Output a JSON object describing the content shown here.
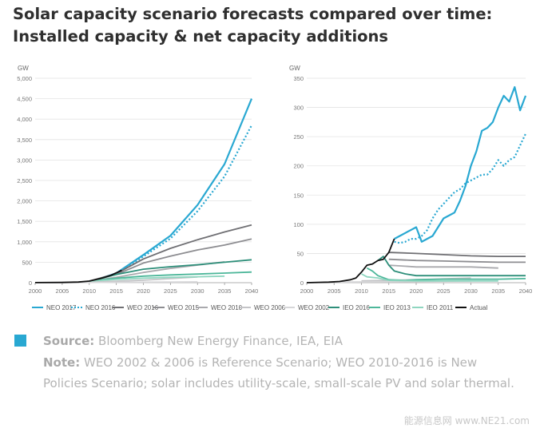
{
  "title": "Solar capacity scenario forecasts compared over time: Installed capacity & net capacity additions",
  "source_label": "Source:",
  "source_text": "Bloomberg New Energy Finance, IEA, EIA",
  "note_label": "Note:",
  "note_text": "WEO 2002 & 2006 is Reference Scenario; WEO 2010-2016 is New Policies Scenario; solar includes utility-scale, small-scale PV and solar thermal.",
  "watermark": "能源信息网 www.NE21.com",
  "legend": [
    {
      "name": "NEO 2017",
      "color": "#29a8d2",
      "dash": "solid"
    },
    {
      "name": "NEO 2016",
      "color": "#29a8d2",
      "dash": "dotted"
    },
    {
      "name": "WEO 2016",
      "color": "#6f6f73",
      "dash": "solid"
    },
    {
      "name": "WEO 2015",
      "color": "#8d8d91",
      "dash": "solid"
    },
    {
      "name": "WEO 2010",
      "color": "#a9a9ad",
      "dash": "solid"
    },
    {
      "name": "WEO 2006",
      "color": "#c4c4c7",
      "dash": "solid"
    },
    {
      "name": "WEO 2002",
      "color": "#d6d6d8",
      "dash": "solid"
    },
    {
      "name": "IEO 2016",
      "color": "#2e8f7a",
      "dash": "solid"
    },
    {
      "name": "IEO 2013",
      "color": "#4db79a",
      "dash": "solid"
    },
    {
      "name": "IEO 2011",
      "color": "#8fd6c0",
      "dash": "solid"
    },
    {
      "name": "Actual",
      "color": "#111111",
      "dash": "solid"
    }
  ],
  "chart_data": [
    {
      "type": "line",
      "ylabel": "GW",
      "xlim": [
        2000,
        2040
      ],
      "ylim": [
        0,
        5000
      ],
      "xticks": [
        2000,
        2005,
        2010,
        2015,
        2020,
        2025,
        2030,
        2035,
        2040
      ],
      "yticks": [
        0,
        500,
        1000,
        1500,
        2000,
        2500,
        3000,
        3500,
        4000,
        4500,
        5000
      ],
      "grid": "horizontal",
      "series": [
        {
          "name": "NEO 2017",
          "x": [
            2012,
            2015,
            2020,
            2025,
            2030,
            2035,
            2040
          ],
          "y": [
            100,
            230,
            680,
            1150,
            1900,
            2900,
            4500
          ]
        },
        {
          "name": "NEO 2016",
          "x": [
            2012,
            2015,
            2020,
            2025,
            2030,
            2035,
            2040
          ],
          "y": [
            100,
            220,
            640,
            1080,
            1750,
            2600,
            3850
          ]
        },
        {
          "name": "WEO 2016",
          "x": [
            2010,
            2015,
            2020,
            2025,
            2030,
            2035,
            2040
          ],
          "y": [
            40,
            220,
            580,
            840,
            1050,
            1240,
            1410
          ]
        },
        {
          "name": "WEO 2015",
          "x": [
            2010,
            2015,
            2020,
            2025,
            2030,
            2035,
            2040
          ],
          "y": [
            40,
            200,
            480,
            650,
            800,
            920,
            1070
          ]
        },
        {
          "name": "WEO 2010",
          "x": [
            2010,
            2015,
            2020,
            2025,
            2030,
            2035
          ],
          "y": [
            40,
            130,
            250,
            350,
            430,
            510
          ]
        },
        {
          "name": "WEO 2006",
          "x": [
            2005,
            2010,
            2015,
            2020,
            2025,
            2030
          ],
          "y": [
            5,
            15,
            35,
            60,
            100,
            140
          ]
        },
        {
          "name": "WEO 2002",
          "x": [
            2000,
            2010,
            2020,
            2030
          ],
          "y": [
            1,
            5,
            12,
            20
          ]
        },
        {
          "name": "IEO 2016",
          "x": [
            2012,
            2015,
            2020,
            2025,
            2030,
            2035,
            2040
          ],
          "y": [
            100,
            200,
            330,
            390,
            440,
            500,
            560
          ]
        },
        {
          "name": "IEO 2013",
          "x": [
            2010,
            2015,
            2020,
            2025,
            2030,
            2035,
            2040
          ],
          "y": [
            40,
            110,
            160,
            190,
            210,
            235,
            260
          ]
        },
        {
          "name": "IEO 2011",
          "x": [
            2010,
            2015,
            2020,
            2025,
            2030,
            2035
          ],
          "y": [
            40,
            80,
            110,
            130,
            145,
            160
          ]
        },
        {
          "name": "Actual",
          "x": [
            2000,
            2005,
            2008,
            2010,
            2012,
            2014,
            2016
          ],
          "y": [
            1,
            5,
            15,
            40,
            100,
            180,
            300
          ]
        }
      ]
    },
    {
      "type": "line",
      "ylabel": "GW",
      "xlim": [
        2000,
        2040
      ],
      "ylim": [
        0,
        350
      ],
      "xticks": [
        2000,
        2005,
        2010,
        2015,
        2020,
        2025,
        2030,
        2035,
        2040
      ],
      "yticks": [
        0,
        50,
        100,
        150,
        200,
        250,
        300,
        350
      ],
      "grid": "horizontal",
      "series": [
        {
          "name": "NEO 2017",
          "x": [
            2016,
            2017,
            2018,
            2019,
            2020,
            2021,
            2022,
            2023,
            2024,
            2025,
            2026,
            2027,
            2028,
            2029,
            2030,
            2031,
            2032,
            2033,
            2034,
            2035,
            2036,
            2037,
            2038,
            2039,
            2040
          ],
          "y": [
            75,
            80,
            85,
            90,
            95,
            70,
            75,
            80,
            95,
            110,
            115,
            120,
            140,
            165,
            200,
            225,
            260,
            265,
            275,
            300,
            320,
            310,
            335,
            295,
            320
          ]
        },
        {
          "name": "NEO 2016",
          "x": [
            2016,
            2017,
            2018,
            2019,
            2020,
            2021,
            2022,
            2023,
            2024,
            2025,
            2026,
            2027,
            2028,
            2029,
            2030,
            2031,
            2032,
            2033,
            2034,
            2035,
            2036,
            2037,
            2038,
            2039,
            2040
          ],
          "y": [
            70,
            68,
            70,
            75,
            75,
            80,
            90,
            110,
            125,
            135,
            145,
            155,
            160,
            170,
            175,
            180,
            185,
            185,
            195,
            210,
            200,
            210,
            215,
            235,
            255
          ]
        },
        {
          "name": "WEO 2016",
          "x": [
            2015,
            2020,
            2025,
            2030,
            2035,
            2040
          ],
          "y": [
            52,
            50,
            48,
            46,
            45,
            45
          ]
        },
        {
          "name": "WEO 2015",
          "x": [
            2015,
            2020,
            2025,
            2030,
            2035,
            2040
          ],
          "y": [
            40,
            38,
            37,
            36,
            35,
            35
          ]
        },
        {
          "name": "WEO 2010",
          "x": [
            2015,
            2020,
            2025,
            2030,
            2035
          ],
          "y": [
            30,
            27,
            27,
            27,
            25
          ]
        },
        {
          "name": "WEO 2006",
          "x": [
            2010,
            2020,
            2030
          ],
          "y": [
            3,
            5,
            8
          ]
        },
        {
          "name": "WEO 2002",
          "x": [
            2005,
            2020,
            2030
          ],
          "y": [
            1,
            2,
            3
          ]
        },
        {
          "name": "IEO 2016",
          "x": [
            2013,
            2014,
            2015,
            2016,
            2018,
            2020,
            2025,
            2030,
            2035,
            2040
          ],
          "y": [
            38,
            45,
            30,
            20,
            15,
            12,
            12,
            12,
            12,
            12
          ]
        },
        {
          "name": "IEO 2013",
          "x": [
            2011,
            2012,
            2013,
            2015,
            2018,
            2020,
            2025,
            2030,
            2035,
            2040
          ],
          "y": [
            25,
            20,
            12,
            5,
            4,
            5,
            6,
            6,
            6,
            7
          ]
        },
        {
          "name": "IEO 2011",
          "x": [
            2010,
            2011,
            2013,
            2015,
            2020,
            2025,
            2030,
            2035
          ],
          "y": [
            15,
            10,
            8,
            4,
            3,
            3,
            3,
            3
          ]
        },
        {
          "name": "Actual",
          "x": [
            2000,
            2004,
            2006,
            2008,
            2009,
            2010,
            2011,
            2012,
            2013,
            2014,
            2015,
            2016
          ],
          "y": [
            0,
            1,
            2,
            5,
            8,
            18,
            30,
            32,
            38,
            40,
            52,
            75
          ]
        }
      ]
    }
  ]
}
